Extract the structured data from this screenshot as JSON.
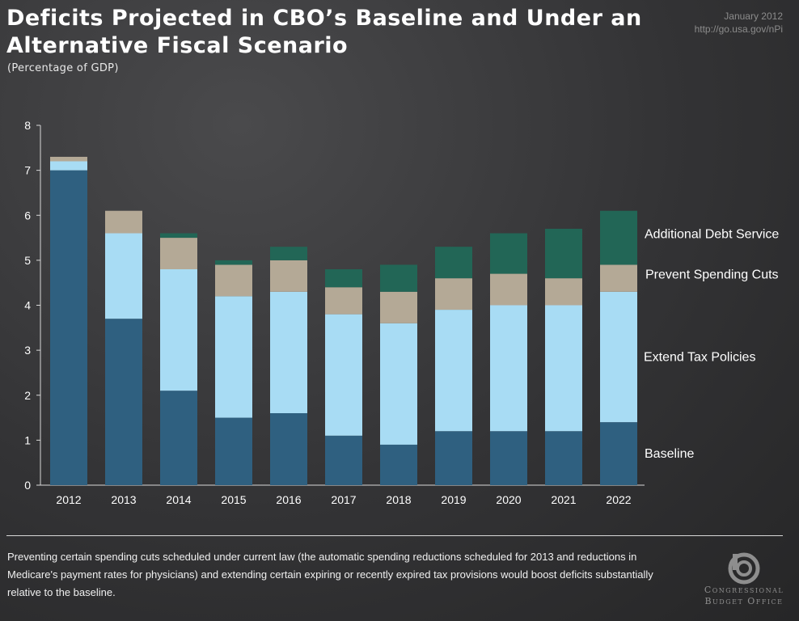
{
  "header": {
    "title": "Deficits Projected in CBO’s Baseline and Under an Alternative Fiscal Scenario",
    "subtitle": "(Percentage of GDP)",
    "date": "January 2012",
    "url": "http://go.usa.gov/nPi"
  },
  "footer": {
    "note": "Preventing certain spending cuts scheduled under current law (the automatic spending reductions scheduled for 2013 and reductions in Medicare's payment rates for physicians) and extending certain expiring or recently expired tax provisions would boost deficits substantially relative to the baseline.",
    "logo_line1": "Congressional",
    "logo_line2": "Budget Office"
  },
  "chart_data": {
    "type": "bar",
    "stacked": true,
    "categories": [
      "2012",
      "2013",
      "2014",
      "2015",
      "2016",
      "2017",
      "2018",
      "2019",
      "2020",
      "2021",
      "2022"
    ],
    "ylim": [
      0,
      8
    ],
    "yticks": [
      0,
      1,
      2,
      3,
      4,
      5,
      6,
      7,
      8
    ],
    "grid": false,
    "legend": "right, labels beside each segment",
    "series": [
      {
        "name": "Baseline",
        "color": "#2f6080",
        "values": [
          7.0,
          3.7,
          2.1,
          1.5,
          1.6,
          1.1,
          0.9,
          1.2,
          1.2,
          1.2,
          1.4
        ]
      },
      {
        "name": "Extend Tax Policies",
        "color": "#a8dcf4",
        "values": [
          0.2,
          1.9,
          2.7,
          2.7,
          2.7,
          2.7,
          2.7,
          2.7,
          2.8,
          2.8,
          2.9
        ]
      },
      {
        "name": "Prevent  Spending Cuts",
        "color": "#b4a996",
        "values": [
          0.1,
          0.5,
          0.7,
          0.7,
          0.7,
          0.6,
          0.7,
          0.7,
          0.7,
          0.6,
          0.6
        ]
      },
      {
        "name": "Additional Debt Service",
        "color": "#226656",
        "values": [
          0.0,
          0.0,
          0.1,
          0.1,
          0.3,
          0.4,
          0.6,
          0.7,
          0.9,
          1.1,
          1.2
        ]
      }
    ]
  }
}
